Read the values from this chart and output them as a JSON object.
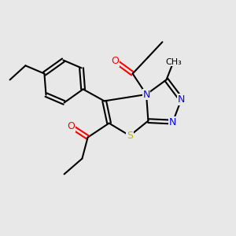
{
  "bg_color": "#e8e8e8",
  "bond_color": "#000000",
  "atom_colors": {
    "N": "#0000ff",
    "O": "#ff0000",
    "S": "#b8b800",
    "C": "#000000"
  },
  "font_size": 9,
  "lw": 1.5
}
